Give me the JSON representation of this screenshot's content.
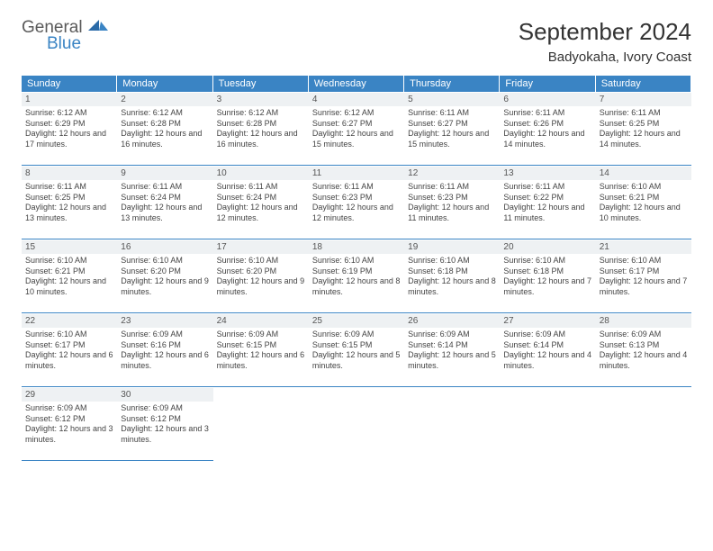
{
  "logo": {
    "general": "General",
    "blue": "Blue"
  },
  "title": "September 2024",
  "location": "Badyokaha, Ivory Coast",
  "dayHeaders": [
    "Sunday",
    "Monday",
    "Tuesday",
    "Wednesday",
    "Thursday",
    "Friday",
    "Saturday"
  ],
  "colors": {
    "headerBg": "#3a84c4",
    "headerText": "#ffffff",
    "dayNumBg": "#eef1f3",
    "borderColor": "#3a84c4",
    "textColor": "#444444",
    "logoBlue": "#3a84c4",
    "logoGray": "#5a5a5a"
  },
  "days": [
    {
      "n": "1",
      "sr": "6:12 AM",
      "ss": "6:29 PM",
      "dl": "12 hours and 17 minutes."
    },
    {
      "n": "2",
      "sr": "6:12 AM",
      "ss": "6:28 PM",
      "dl": "12 hours and 16 minutes."
    },
    {
      "n": "3",
      "sr": "6:12 AM",
      "ss": "6:28 PM",
      "dl": "12 hours and 16 minutes."
    },
    {
      "n": "4",
      "sr": "6:12 AM",
      "ss": "6:27 PM",
      "dl": "12 hours and 15 minutes."
    },
    {
      "n": "5",
      "sr": "6:11 AM",
      "ss": "6:27 PM",
      "dl": "12 hours and 15 minutes."
    },
    {
      "n": "6",
      "sr": "6:11 AM",
      "ss": "6:26 PM",
      "dl": "12 hours and 14 minutes."
    },
    {
      "n": "7",
      "sr": "6:11 AM",
      "ss": "6:25 PM",
      "dl": "12 hours and 14 minutes."
    },
    {
      "n": "8",
      "sr": "6:11 AM",
      "ss": "6:25 PM",
      "dl": "12 hours and 13 minutes."
    },
    {
      "n": "9",
      "sr": "6:11 AM",
      "ss": "6:24 PM",
      "dl": "12 hours and 13 minutes."
    },
    {
      "n": "10",
      "sr": "6:11 AM",
      "ss": "6:24 PM",
      "dl": "12 hours and 12 minutes."
    },
    {
      "n": "11",
      "sr": "6:11 AM",
      "ss": "6:23 PM",
      "dl": "12 hours and 12 minutes."
    },
    {
      "n": "12",
      "sr": "6:11 AM",
      "ss": "6:23 PM",
      "dl": "12 hours and 11 minutes."
    },
    {
      "n": "13",
      "sr": "6:11 AM",
      "ss": "6:22 PM",
      "dl": "12 hours and 11 minutes."
    },
    {
      "n": "14",
      "sr": "6:10 AM",
      "ss": "6:21 PM",
      "dl": "12 hours and 10 minutes."
    },
    {
      "n": "15",
      "sr": "6:10 AM",
      "ss": "6:21 PM",
      "dl": "12 hours and 10 minutes."
    },
    {
      "n": "16",
      "sr": "6:10 AM",
      "ss": "6:20 PM",
      "dl": "12 hours and 9 minutes."
    },
    {
      "n": "17",
      "sr": "6:10 AM",
      "ss": "6:20 PM",
      "dl": "12 hours and 9 minutes."
    },
    {
      "n": "18",
      "sr": "6:10 AM",
      "ss": "6:19 PM",
      "dl": "12 hours and 8 minutes."
    },
    {
      "n": "19",
      "sr": "6:10 AM",
      "ss": "6:18 PM",
      "dl": "12 hours and 8 minutes."
    },
    {
      "n": "20",
      "sr": "6:10 AM",
      "ss": "6:18 PM",
      "dl": "12 hours and 7 minutes."
    },
    {
      "n": "21",
      "sr": "6:10 AM",
      "ss": "6:17 PM",
      "dl": "12 hours and 7 minutes."
    },
    {
      "n": "22",
      "sr": "6:10 AM",
      "ss": "6:17 PM",
      "dl": "12 hours and 6 minutes."
    },
    {
      "n": "23",
      "sr": "6:09 AM",
      "ss": "6:16 PM",
      "dl": "12 hours and 6 minutes."
    },
    {
      "n": "24",
      "sr": "6:09 AM",
      "ss": "6:15 PM",
      "dl": "12 hours and 6 minutes."
    },
    {
      "n": "25",
      "sr": "6:09 AM",
      "ss": "6:15 PM",
      "dl": "12 hours and 5 minutes."
    },
    {
      "n": "26",
      "sr": "6:09 AM",
      "ss": "6:14 PM",
      "dl": "12 hours and 5 minutes."
    },
    {
      "n": "27",
      "sr": "6:09 AM",
      "ss": "6:14 PM",
      "dl": "12 hours and 4 minutes."
    },
    {
      "n": "28",
      "sr": "6:09 AM",
      "ss": "6:13 PM",
      "dl": "12 hours and 4 minutes."
    },
    {
      "n": "29",
      "sr": "6:09 AM",
      "ss": "6:12 PM",
      "dl": "12 hours and 3 minutes."
    },
    {
      "n": "30",
      "sr": "6:09 AM",
      "ss": "6:12 PM",
      "dl": "12 hours and 3 minutes."
    }
  ],
  "labels": {
    "sunrise": "Sunrise:",
    "sunset": "Sunset:",
    "daylight": "Daylight:"
  }
}
